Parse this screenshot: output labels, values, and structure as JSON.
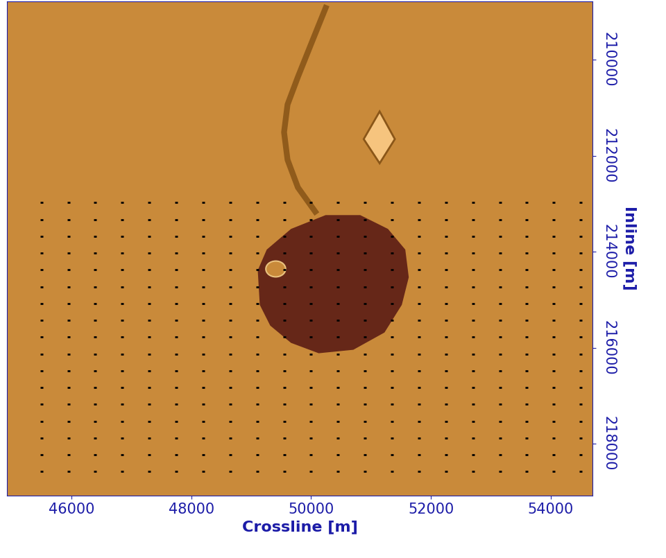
{
  "chart_data": {
    "type": "map",
    "x_label": "Crossline [m]",
    "y_label": "Inline [m]",
    "xlim": [
      44920,
      54700
    ],
    "ylim": [
      219080,
      208780
    ],
    "xticks": [
      46000,
      48000,
      50000,
      52000,
      54000
    ],
    "yticks": [
      210000,
      212000,
      214000,
      216000,
      218000
    ],
    "body": {
      "x": [
        49110,
        49260,
        49665,
        50243,
        50820,
        51283,
        51572,
        51630,
        51514,
        51225,
        50705,
        50127,
        49665,
        49318,
        49144
      ],
      "y": [
        214389,
        213957,
        213526,
        213238,
        213238,
        213526,
        213957,
        214533,
        215108,
        215684,
        216044,
        216116,
        215900,
        215540,
        215108
      ]
    },
    "hole": {
      "x": 49410,
      "y": 214360,
      "radius": 165
    },
    "arc": {
      "x": [
        50069,
        49780,
        49607,
        49549,
        49607,
        49780,
        50011,
        50243
      ],
      "y": [
        213166,
        212662,
        212086,
        211511,
        210935,
        210360,
        209640,
        208921
      ]
    },
    "lens": {
      "x": [
        50878,
        51144,
        51398,
        51144
      ],
      "y": [
        211655,
        211079,
        211655,
        212159
      ]
    },
    "dots": {
      "x": [
        45500,
        45950,
        46400,
        46850,
        47300,
        47750,
        48200,
        48650,
        49100,
        49550,
        50000,
        50450,
        50900,
        51350,
        51800,
        52250,
        52700,
        53150,
        53600,
        54050,
        54500
      ],
      "y": [
        212980,
        213330,
        213680,
        214030,
        214380,
        214730,
        215080,
        215430,
        215780,
        216130,
        216480,
        216830,
        217180,
        217530,
        217880,
        218230,
        218580
      ]
    }
  }
}
